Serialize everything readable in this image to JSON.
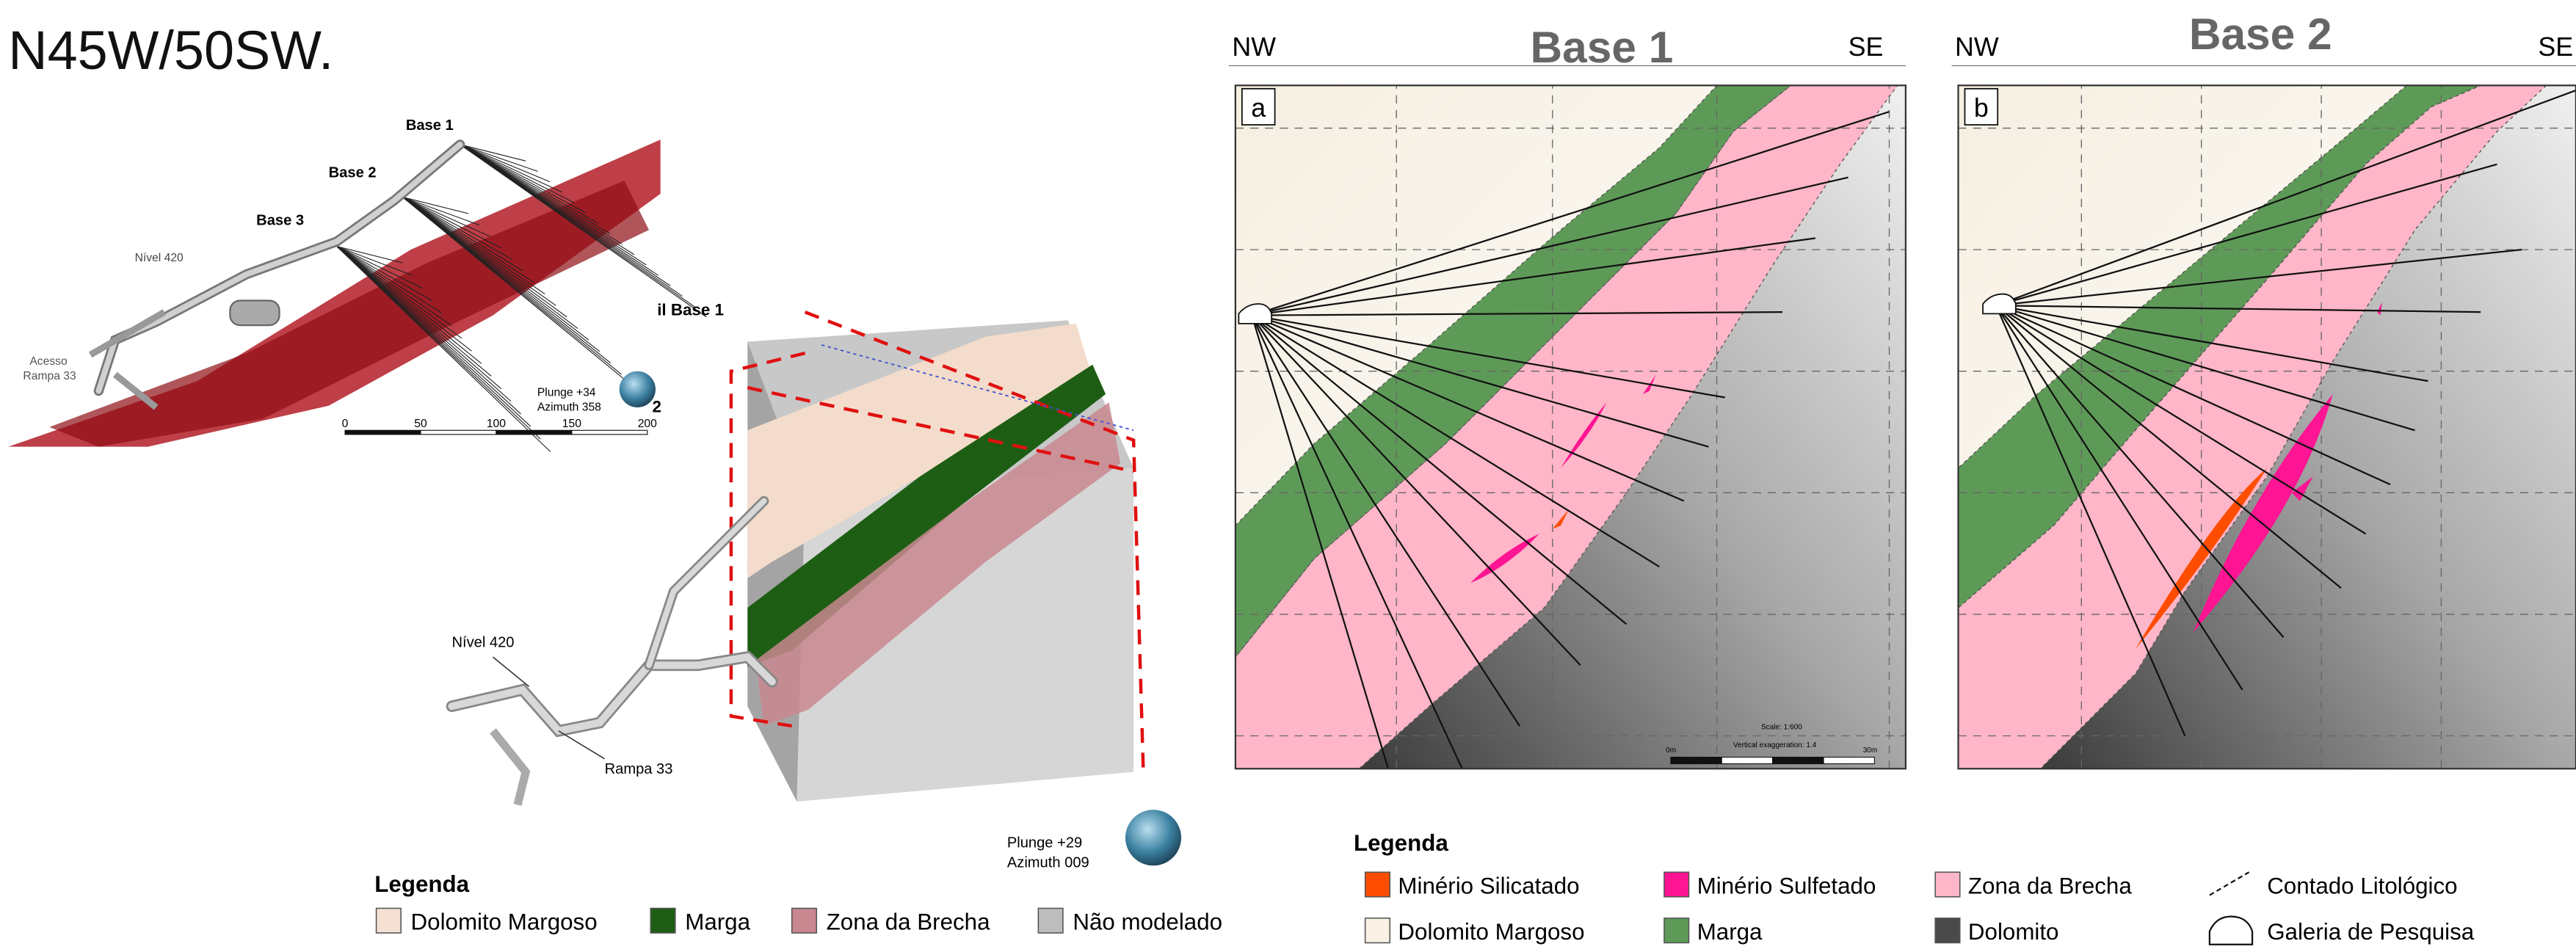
{
  "heading": "N45W/50SW.",
  "left_view": {
    "bases": [
      "Base 1",
      "Base 2",
      "Base 3"
    ],
    "level": "Nível 420",
    "access": [
      "Acesso",
      "Rampa 33"
    ],
    "scale": [
      0,
      50,
      100,
      150,
      200
    ]
  },
  "block_view": {
    "section_label": "il Base 1",
    "section_number": "2",
    "top_orientation": [
      "Plunge +34",
      "Azimuth 358"
    ],
    "level": "Nível 420",
    "ramp": "Rampa 33",
    "bottom_orientation": [
      "Plunge +29",
      "Azimuth 009"
    ]
  },
  "legend_3d": {
    "title": "Legenda",
    "items": [
      {
        "label": "Dolomito Margoso",
        "color": "#f5e1d3"
      },
      {
        "label": "Marga",
        "color": "#1e5e14"
      },
      {
        "label": "Zona da Brecha",
        "color": "#c9878f"
      },
      {
        "label": "Não modelado",
        "color": "#bdbdbd"
      }
    ]
  },
  "sections": [
    {
      "left": "NW",
      "title": "Base 1",
      "right": "SE",
      "panel": "a",
      "scale": "Scale: 1:600",
      "exaggeration": "Vertical exaggeration: 1.4",
      "scale_start": "0m",
      "scale_end": "30m"
    },
    {
      "left": "NW",
      "title": "Base 2",
      "right": "SE",
      "panel": "b"
    }
  ],
  "legend_sections": {
    "title": "Legenda",
    "items": [
      {
        "label": "Minério Silicatado",
        "color": "#ff4d00"
      },
      {
        "label": "Minério Sulfetado",
        "color": "#ff1493"
      },
      {
        "label": "Zona da Brecha",
        "color": "#ffb6c8"
      },
      {
        "label": "Contado Litológico"
      },
      {
        "label": "Dolomito Margoso",
        "color": "#f9f1e3"
      },
      {
        "label": "Marga",
        "color": "#5e9a57"
      },
      {
        "label": "Dolomito",
        "color": "#4a4a4a"
      },
      {
        "label": "Galeria de Pesquisa"
      }
    ]
  }
}
